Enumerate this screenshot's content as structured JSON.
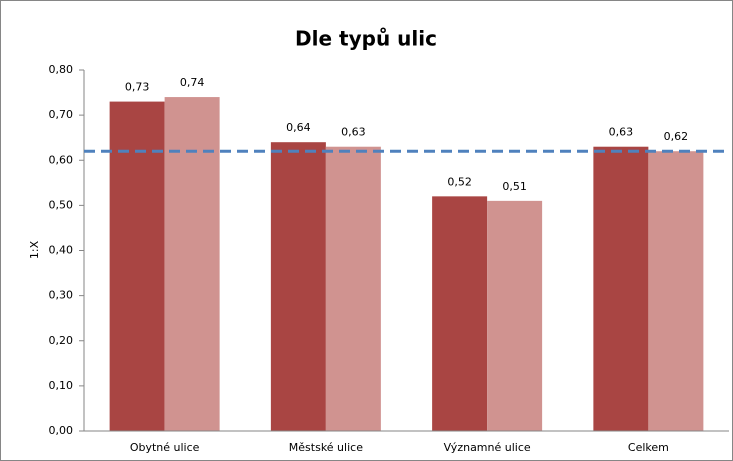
{
  "chart_data": {
    "type": "bar",
    "title": "Dle typů ulic",
    "y_label": "1:X",
    "categories": [
      "Obytné ulice",
      "Městské ulice",
      "Významné ulice",
      "Celkem"
    ],
    "series": [
      {
        "color": "#a94543",
        "values": [
          0.73,
          0.64,
          0.52,
          0.63
        ],
        "value_labels": [
          "0,73",
          "0,64",
          "0,52",
          "0,63"
        ]
      },
      {
        "color": "#d09390",
        "values": [
          0.74,
          0.63,
          0.51,
          0.62
        ],
        "value_labels": [
          "0,74",
          "0,63",
          "0,51",
          "0,62"
        ]
      }
    ],
    "reference_line": {
      "value": 0.62,
      "color": "#4f81bd"
    },
    "ylim": [
      0,
      0.8
    ],
    "yticks": [
      {
        "value": 0,
        "label": "0,00"
      },
      {
        "value": 0.1,
        "label": "0,10"
      },
      {
        "value": 0.2,
        "label": "0,20"
      },
      {
        "value": 0.3,
        "label": "0,30"
      },
      {
        "value": 0.4,
        "label": "0,40"
      },
      {
        "value": 0.5,
        "label": "0,50"
      },
      {
        "value": 0.6,
        "label": "0,60"
      },
      {
        "value": 0.7,
        "label": "0,70"
      },
      {
        "value": 0.8,
        "label": "0,80"
      }
    ]
  }
}
